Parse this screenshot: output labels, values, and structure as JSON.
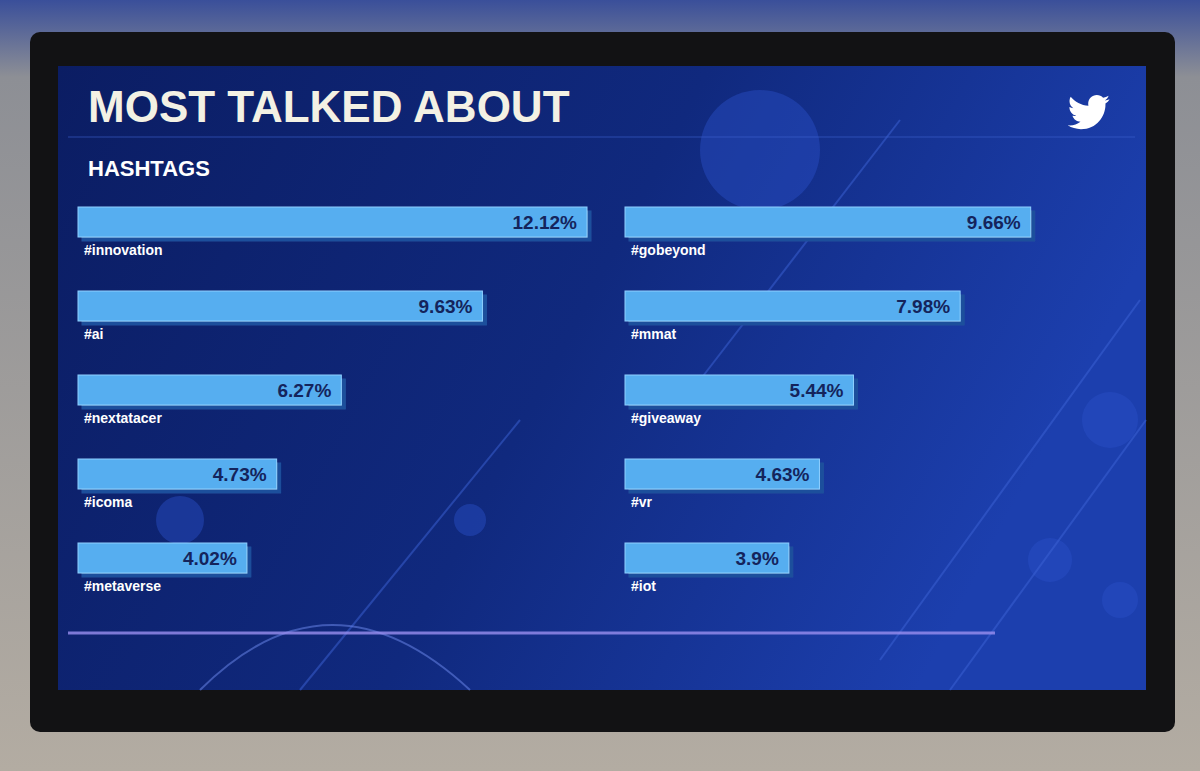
{
  "chart_data": {
    "type": "bar",
    "title": "MOST TALKED ABOUT",
    "subtitle": "HASHTAGS",
    "orientation": "horizontal",
    "categories": [
      "#innovation",
      "#gobeyond",
      "#ai",
      "#mmat",
      "#nextatacer",
      "#giveaway",
      "#icoma",
      "#vr",
      "#metaverse",
      "#iot"
    ],
    "values": [
      12.12,
      9.66,
      9.63,
      7.98,
      6.27,
      5.44,
      4.73,
      4.63,
      4.02,
      3.9
    ],
    "value_labels": [
      "12.12%",
      "9.66%",
      "9.63%",
      "7.98%",
      "6.27%",
      "5.44%",
      "4.73%",
      "4.63%",
      "4.02%",
      "3.9%"
    ],
    "color": "#56aef0",
    "xlim": [
      0,
      12.12
    ],
    "data_labels": true,
    "grid": false,
    "tick_labels": false
  }
}
